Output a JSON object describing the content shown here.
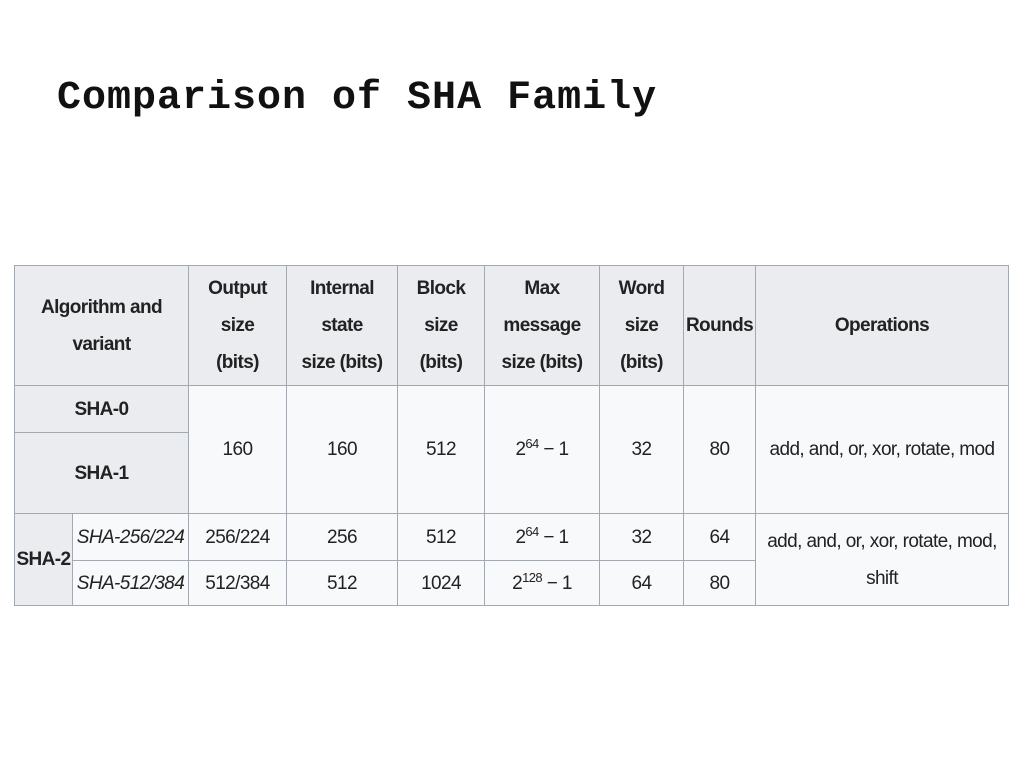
{
  "title": "Comparison of SHA Family",
  "table": {
    "headers": [
      [
        "Algorithm and",
        "variant"
      ],
      [
        "Output",
        "size",
        "(bits)"
      ],
      [
        "Internal",
        "state",
        "size (bits)"
      ],
      [
        "Block",
        "size",
        "(bits)"
      ],
      [
        "Max",
        "message",
        "size (bits)"
      ],
      [
        "Word",
        "size",
        "(bits)"
      ],
      [
        "Rounds"
      ],
      [
        "Operations"
      ]
    ],
    "sha1_group": {
      "variants": [
        "SHA-0",
        "SHA-1"
      ],
      "output": "160",
      "internal": "160",
      "block": "512",
      "max": {
        "base": "2",
        "exp": "64",
        "tail": "− 1"
      },
      "word": "32",
      "rounds": "80",
      "operations": [
        "add, and, or, xor, rotate, mod"
      ]
    },
    "sha2_group": {
      "name": "SHA-2",
      "rows": [
        {
          "variant": "SHA-256/224",
          "output": "256/224",
          "internal": "256",
          "block": "512",
          "max": {
            "base": "2",
            "exp": "64",
            "tail": "− 1"
          },
          "word": "32",
          "rounds": "64"
        },
        {
          "variant": "SHA-512/384",
          "output": "512/384",
          "internal": "512",
          "block": "1024",
          "max": {
            "base": "2",
            "exp": "128",
            "tail": "− 1"
          },
          "word": "64",
          "rounds": "80"
        }
      ],
      "operations": [
        "add, and, or, xor, rotate, mod,",
        "shift"
      ]
    }
  }
}
